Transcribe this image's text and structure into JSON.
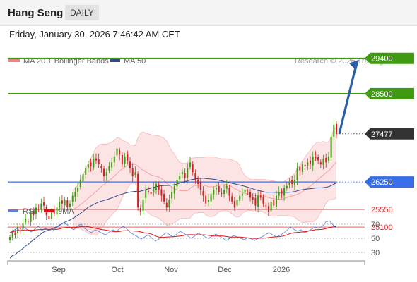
{
  "header": {
    "title": "Hang Seng",
    "period": "DAILY"
  },
  "datetime": "Friday, January 30, 2026 7:46:42 AM CET",
  "legend": {
    "bb_label": "MA 20 + Bollinger Bands",
    "ma50_label": "MA 50",
    "credit": "Research © 2026 Trading Central"
  },
  "rsi_legend": {
    "rsi_label": "RSI",
    "ma_label": "9MA"
  },
  "colors": {
    "resistance": "#3f9a12",
    "current": "#333333",
    "pivot": "#3a6ee8",
    "support": "#f08080",
    "arrow": "#2a5fa8",
    "ma50": "#2e4a8c",
    "band_fill": "#fde4e4",
    "rsi": "#5a82d6",
    "rsi_ma": "#e01010"
  },
  "chart_data": [
    {
      "type": "candlestick",
      "ylim": [
        24600,
        29700
      ],
      "x_labels": [
        "Sep",
        "Oct",
        "Nov",
        "Dec",
        "2026"
      ],
      "levels": [
        {
          "value": 29400,
          "label": "29400",
          "kind": "resistance"
        },
        {
          "value": 28500,
          "label": "28500",
          "kind": "resistance"
        },
        {
          "value": 27477,
          "label": "27477",
          "kind": "current"
        },
        {
          "value": 26250,
          "label": "26250",
          "kind": "pivot"
        },
        {
          "value": 25550,
          "label": "25550",
          "kind": "support"
        },
        {
          "value": 25100,
          "label": "25100",
          "kind": "support"
        }
      ],
      "close_series": [
        24850,
        24950,
        24900,
        25100,
        25050,
        25200,
        25300,
        25250,
        25500,
        25400,
        25600,
        25550,
        25700,
        25650,
        25400,
        25300,
        25500,
        25450,
        25600,
        25750,
        25700,
        25800,
        25600,
        25700,
        25900,
        26000,
        26100,
        26300,
        26450,
        26600,
        26700,
        26650,
        26850,
        26800,
        26700,
        26600,
        26400,
        26500,
        26650,
        26750,
        26900,
        27100,
        26950,
        26700,
        26900,
        26800,
        26600,
        26400,
        26500,
        25600,
        25500,
        25800,
        26050,
        26000,
        25950,
        26100,
        26200,
        26050,
        25900,
        25750,
        25600,
        25800,
        26000,
        26150,
        26300,
        26400,
        26500,
        26350,
        26600,
        26750,
        26500,
        26300,
        26200,
        26050,
        25900,
        25700,
        25800,
        25950,
        26050,
        26100,
        26000,
        25950,
        26050,
        26150,
        25900,
        25750,
        25600,
        25800,
        25900,
        25950,
        26050,
        26000,
        25850,
        25800,
        25650,
        25900,
        25850,
        25700,
        25650,
        25500,
        25750,
        25650,
        25900,
        26000,
        25950,
        26100,
        26150,
        26250,
        26200,
        26300,
        26600,
        26550,
        26700,
        26650,
        26750,
        26700,
        26900,
        26850,
        26800,
        26700,
        26850,
        26750,
        26900,
        27400,
        27700,
        27477
      ],
      "ma50_values": [
        26250,
        26700
      ],
      "bollinger_upper": [
        27400,
        27100
      ],
      "bollinger_lower": [
        25500,
        25900
      ],
      "forecast_arrow": {
        "from": 27477,
        "to": 29400
      }
    },
    {
      "type": "line",
      "name": "RSI",
      "ylim": [
        20,
        80
      ],
      "y_ticks": [
        "70",
        "50",
        "30"
      ],
      "rsi_values": [
        58,
        61,
        64,
        60,
        66,
        62,
        59,
        63,
        67,
        61,
        64,
        62,
        60,
        65,
        68,
        72,
        70,
        65,
        62,
        67,
        70,
        64,
        61,
        58,
        62,
        60,
        57,
        55,
        59,
        62,
        60,
        64,
        67,
        63,
        58,
        55,
        52,
        49,
        52,
        55,
        50,
        46,
        49,
        54,
        58,
        55,
        52,
        56,
        60,
        57,
        54,
        50,
        53,
        57,
        55,
        52,
        50,
        53,
        56,
        53,
        50,
        47,
        50,
        54,
        52,
        50,
        48,
        51,
        49,
        47,
        50,
        52,
        55,
        58,
        55,
        52,
        54,
        57,
        61,
        66,
        63,
        60,
        62,
        58,
        60,
        63,
        66,
        64,
        67,
        73,
        75,
        69,
        64
      ]
    }
  ]
}
